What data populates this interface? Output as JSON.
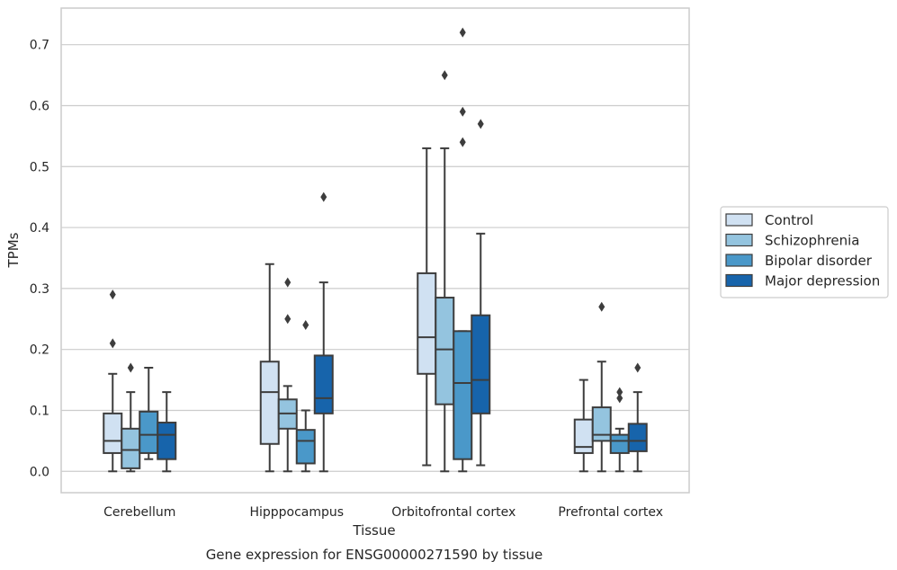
{
  "caption": "Gene expression for ENSG00000271590 by tissue",
  "chart_data": {
    "type": "box",
    "xlabel": "Tissue",
    "ylabel": "TPMs",
    "ylim": [
      -0.035,
      0.76
    ],
    "yticks": [
      0.0,
      0.1,
      0.2,
      0.3,
      0.4,
      0.5,
      0.6,
      0.7
    ],
    "ytick_labels": [
      "0.0",
      "0.1",
      "0.2",
      "0.3",
      "0.4",
      "0.5",
      "0.6",
      "0.7"
    ],
    "grid": "horizontal",
    "legend_position": "right",
    "categories": [
      "Cerebellum",
      "Hipppocampus",
      "Orbitofrontal cortex",
      "Prefrontal cortex"
    ],
    "series": [
      {
        "name": "Control",
        "color": "#d0e1f2",
        "boxes": [
          {
            "min": 0.0,
            "q1": 0.03,
            "median": 0.05,
            "q3": 0.095,
            "max": 0.16,
            "outliers": [
              0.21,
              0.29
            ]
          },
          {
            "min": 0.0,
            "q1": 0.045,
            "median": 0.13,
            "q3": 0.18,
            "max": 0.34,
            "outliers": []
          },
          {
            "min": 0.01,
            "q1": 0.16,
            "median": 0.22,
            "q3": 0.325,
            "max": 0.53,
            "outliers": []
          },
          {
            "min": 0.0,
            "q1": 0.03,
            "median": 0.04,
            "q3": 0.085,
            "max": 0.15,
            "outliers": []
          }
        ]
      },
      {
        "name": "Schizophrenia",
        "color": "#94c4df",
        "boxes": [
          {
            "min": 0.0,
            "q1": 0.005,
            "median": 0.035,
            "q3": 0.07,
            "max": 0.13,
            "outliers": [
              0.17
            ]
          },
          {
            "min": 0.0,
            "q1": 0.07,
            "median": 0.095,
            "q3": 0.118,
            "max": 0.14,
            "outliers": [
              0.25,
              0.31
            ]
          },
          {
            "min": 0.0,
            "q1": 0.11,
            "median": 0.2,
            "q3": 0.285,
            "max": 0.53,
            "outliers": [
              0.65
            ]
          },
          {
            "min": 0.0,
            "q1": 0.05,
            "median": 0.06,
            "q3": 0.105,
            "max": 0.18,
            "outliers": [
              0.27
            ]
          }
        ]
      },
      {
        "name": "Bipolar disorder",
        "color": "#4a98c9",
        "boxes": [
          {
            "min": 0.02,
            "q1": 0.03,
            "median": 0.06,
            "q3": 0.098,
            "max": 0.17,
            "outliers": []
          },
          {
            "min": 0.0,
            "q1": 0.013,
            "median": 0.05,
            "q3": 0.068,
            "max": 0.1,
            "outliers": [
              0.24
            ]
          },
          {
            "min": 0.0,
            "q1": 0.02,
            "median": 0.145,
            "q3": 0.23,
            "max": 0.23,
            "outliers": [
              0.54,
              0.59,
              0.72
            ]
          },
          {
            "min": 0.0,
            "q1": 0.03,
            "median": 0.05,
            "q3": 0.06,
            "max": 0.07,
            "outliers": [
              0.12,
              0.13
            ]
          }
        ]
      },
      {
        "name": "Major depression",
        "color": "#1764ab",
        "boxes": [
          {
            "min": 0.0,
            "q1": 0.02,
            "median": 0.06,
            "q3": 0.08,
            "max": 0.13,
            "outliers": []
          },
          {
            "min": 0.0,
            "q1": 0.095,
            "median": 0.12,
            "q3": 0.19,
            "max": 0.31,
            "outliers": [
              0.45
            ]
          },
          {
            "min": 0.01,
            "q1": 0.095,
            "median": 0.15,
            "q3": 0.256,
            "max": 0.39,
            "outliers": [
              0.57
            ]
          },
          {
            "min": 0.0,
            "q1": 0.033,
            "median": 0.05,
            "q3": 0.078,
            "max": 0.13,
            "outliers": [
              0.17
            ]
          }
        ]
      }
    ]
  }
}
